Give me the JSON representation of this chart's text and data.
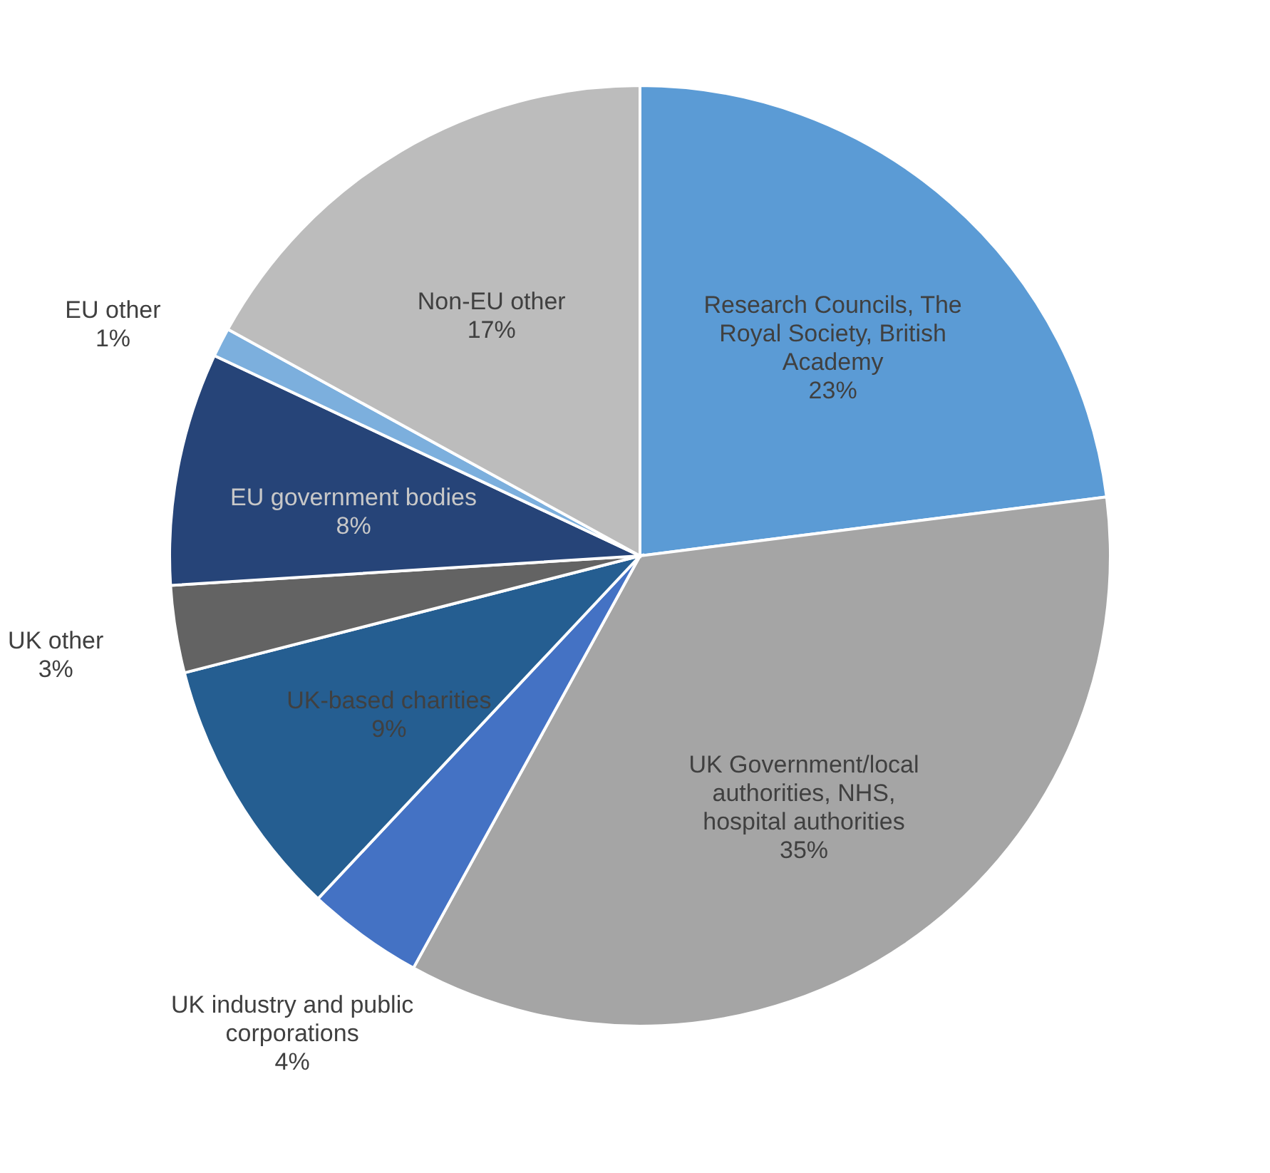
{
  "chart_data": {
    "type": "pie",
    "categories": [
      "Research Councils, The Royal Society, British Academy",
      "UK Government/local authorities, NHS, hospital authorities",
      "UK industry and public corporations",
      "UK-based charities",
      "UK other",
      "EU government bodies",
      "EU other",
      "Non-EU other"
    ],
    "values": [
      23,
      35,
      4,
      9,
      3,
      8,
      1,
      17
    ],
    "value_labels": [
      "23%",
      "35%",
      "4%",
      "9%",
      "3%",
      "8%",
      "1%",
      "17%"
    ],
    "colors": [
      "#5b9bd5",
      "#a5a5a5",
      "#4472c4",
      "#255e91",
      "#636363",
      "#264478",
      "#7cafdd",
      "#bcbcbc"
    ],
    "legend": false
  }
}
